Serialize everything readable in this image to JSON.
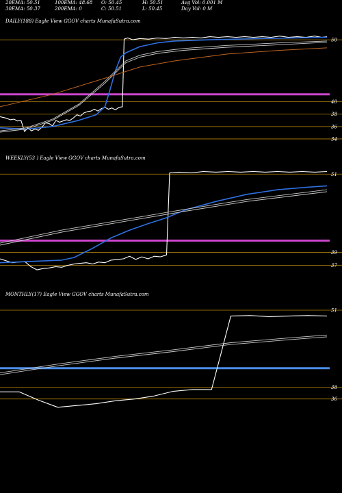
{
  "header": {
    "row1": [
      {
        "text": "20EMA: 50.51"
      },
      {
        "text": "100EMA: 48.68"
      },
      {
        "text": "O: 50.45"
      },
      {
        "text": "H: 50.51"
      },
      {
        "text": "Avg Vol: 0.001 M"
      }
    ],
    "row2": [
      {
        "text": "30EMA: 50.37"
      },
      {
        "text": "200EMA: 0"
      },
      {
        "text": "C: 50.51"
      },
      {
        "text": "L: 50.45"
      },
      {
        "text": "Day Vol: 0  M"
      }
    ]
  },
  "colors": {
    "background": "#000000",
    "price": "#ffffff",
    "ema_fast": "#2e6fe0",
    "ema_mid": "#c9c9c9",
    "ema_slow": "#c0651f",
    "level_line": "#b8860b",
    "support_daily": "#cc44cc",
    "support_weekly": "#cc44cc",
    "support_monthly": "#4a8ee8"
  },
  "chart_data": [
    {
      "type": "line",
      "label": "DAILY(188) Eagle  View  GGOV charts MunafaSutra.com",
      "ylim": [
        33,
        52
      ],
      "y_ticks": [
        50,
        40,
        38,
        36,
        34
      ],
      "support_level": 41.2,
      "series": [
        {
          "key": "price",
          "style": "price",
          "values": [
            [
              0,
              37.6
            ],
            [
              3,
              37.4
            ],
            [
              6,
              37.1
            ],
            [
              8,
              37.2
            ],
            [
              10,
              36.9
            ],
            [
              12,
              37.0
            ],
            [
              14,
              35.2
            ],
            [
              16,
              35.8
            ],
            [
              18,
              35.3
            ],
            [
              20,
              35.6
            ],
            [
              22,
              35.4
            ],
            [
              24,
              35.9
            ],
            [
              26,
              36.6
            ],
            [
              28,
              36.5
            ],
            [
              30,
              36.1
            ],
            [
              32,
              37.0
            ],
            [
              34,
              36.7
            ],
            [
              36,
              36.9
            ],
            [
              38,
              37.1
            ],
            [
              40,
              37.0
            ],
            [
              42,
              37.4
            ],
            [
              44,
              37.9
            ],
            [
              46,
              37.7
            ],
            [
              48,
              38.2
            ],
            [
              50,
              38.4
            ],
            [
              52,
              38.5
            ],
            [
              54,
              38.8
            ],
            [
              56,
              38.5
            ],
            [
              58,
              38.9
            ],
            [
              60,
              39.1
            ],
            [
              62,
              38.8
            ],
            [
              64,
              39.0
            ],
            [
              66,
              38.7
            ],
            [
              68,
              39.1
            ],
            [
              70,
              39.2
            ],
            [
              71,
              50.1
            ],
            [
              73,
              50.3
            ],
            [
              76,
              50.0
            ],
            [
              80,
              50.2
            ],
            [
              85,
              50.1
            ],
            [
              90,
              50.3
            ],
            [
              95,
              50.2
            ],
            [
              100,
              50.4
            ],
            [
              105,
              50.3
            ],
            [
              110,
              50.4
            ],
            [
              115,
              50.3
            ],
            [
              120,
              50.5
            ],
            [
              125,
              50.4
            ],
            [
              130,
              50.5
            ],
            [
              135,
              50.4
            ],
            [
              140,
              50.5
            ],
            [
              145,
              50.4
            ],
            [
              150,
              50.5
            ],
            [
              155,
              50.4
            ],
            [
              160,
              50.6
            ],
            [
              165,
              50.4
            ],
            [
              170,
              50.5
            ],
            [
              175,
              50.4
            ],
            [
              180,
              50.6
            ],
            [
              184,
              50.4
            ],
            [
              187,
              50.5
            ]
          ]
        },
        {
          "key": "ema_fast",
          "style": "fast",
          "values": [
            [
              0,
              35.8
            ],
            [
              15,
              35.6
            ],
            [
              30,
              36.0
            ],
            [
              45,
              37.0
            ],
            [
              55,
              37.9
            ],
            [
              60,
              39.2
            ],
            [
              63,
              42.0
            ],
            [
              66,
              45.0
            ],
            [
              69,
              47.2
            ],
            [
              72,
              47.9
            ],
            [
              80,
              48.9
            ],
            [
              90,
              49.5
            ],
            [
              100,
              49.8
            ],
            [
              120,
              50.0
            ],
            [
              150,
              50.2
            ],
            [
              187,
              50.4
            ]
          ]
        },
        {
          "key": "ema_mid_1",
          "style": "mid",
          "values": [
            [
              0,
              35.3
            ],
            [
              15,
              35.8
            ],
            [
              30,
              37.2
            ],
            [
              45,
              39.6
            ],
            [
              60,
              43.3
            ],
            [
              72,
              46.6
            ],
            [
              80,
              47.5
            ],
            [
              90,
              48.1
            ],
            [
              105,
              48.6
            ],
            [
              130,
              49.1
            ],
            [
              160,
              49.5
            ],
            [
              187,
              49.8
            ]
          ]
        },
        {
          "key": "ema_mid_2",
          "style": "mid",
          "values": [
            [
              0,
              35.1
            ],
            [
              15,
              35.6
            ],
            [
              30,
              37.0
            ],
            [
              45,
              39.4
            ],
            [
              60,
              43.0
            ],
            [
              72,
              46.3
            ],
            [
              80,
              47.2
            ],
            [
              90,
              47.8
            ],
            [
              105,
              48.3
            ],
            [
              130,
              48.8
            ],
            [
              160,
              49.2
            ],
            [
              187,
              49.6
            ]
          ]
        },
        {
          "key": "ema_slow",
          "style": "slow",
          "values": [
            [
              0,
              39.2
            ],
            [
              30,
              41.2
            ],
            [
              60,
              43.8
            ],
            [
              80,
              45.6
            ],
            [
              100,
              46.6
            ],
            [
              130,
              47.7
            ],
            [
              160,
              48.3
            ],
            [
              187,
              48.7
            ]
          ]
        }
      ]
    },
    {
      "type": "line",
      "label": "WEEKLY(53                    ) Eagle  View  GGOV charts MunafaSutra.com",
      "ylim": [
        36,
        52.5
      ],
      "y_ticks": [
        51,
        39,
        37
      ],
      "support_level": 40.8,
      "series": [
        {
          "key": "price",
          "style": "price",
          "values": [
            [
              0,
              38.0
            ],
            [
              2,
              37.4
            ],
            [
              4,
              37.6
            ],
            [
              5,
              36.8
            ],
            [
              6,
              36.3
            ],
            [
              7,
              36.5
            ],
            [
              8,
              36.6
            ],
            [
              9,
              36.8
            ],
            [
              10,
              36.7
            ],
            [
              11,
              37.0
            ],
            [
              12,
              37.2
            ],
            [
              13,
              37.3
            ],
            [
              14,
              37.4
            ],
            [
              15,
              37.2
            ],
            [
              16,
              37.5
            ],
            [
              17,
              37.4
            ],
            [
              18,
              37.8
            ],
            [
              19,
              37.9
            ],
            [
              20,
              38.0
            ],
            [
              21,
              38.4
            ],
            [
              22,
              37.9
            ],
            [
              23,
              38.3
            ],
            [
              24,
              38.0
            ],
            [
              25,
              38.4
            ],
            [
              26,
              38.3
            ],
            [
              27,
              38.6
            ],
            [
              27.5,
              51.2
            ],
            [
              29,
              51.3
            ],
            [
              31,
              51.2
            ],
            [
              33,
              51.4
            ],
            [
              35,
              51.3
            ],
            [
              37,
              51.4
            ],
            [
              39,
              51.3
            ],
            [
              41,
              51.4
            ],
            [
              43,
              51.3
            ],
            [
              45,
              51.4
            ],
            [
              47,
              51.3
            ],
            [
              49,
              51.4
            ],
            [
              51,
              51.3
            ],
            [
              53,
              51.4
            ]
          ]
        },
        {
          "key": "ema_fast",
          "style": "fast",
          "values": [
            [
              0,
              37.4
            ],
            [
              5,
              37.6
            ],
            [
              10,
              37.8
            ],
            [
              12,
              38.2
            ],
            [
              15,
              39.6
            ],
            [
              18,
              41.2
            ],
            [
              21,
              42.4
            ],
            [
              24,
              43.4
            ],
            [
              27,
              44.3
            ],
            [
              30,
              45.5
            ],
            [
              35,
              46.8
            ],
            [
              40,
              47.9
            ],
            [
              45,
              48.6
            ],
            [
              50,
              49.0
            ],
            [
              53,
              49.2
            ]
          ]
        },
        {
          "key": "ema_mid_1",
          "style": "mid",
          "values": [
            [
              0,
              40.4
            ],
            [
              10,
              42.4
            ],
            [
              20,
              44.0
            ],
            [
              30,
              45.6
            ],
            [
              40,
              47.1
            ],
            [
              53,
              48.6
            ]
          ]
        },
        {
          "key": "ema_mid_2",
          "style": "mid",
          "values": [
            [
              0,
              40.1
            ],
            [
              10,
              42.1
            ],
            [
              20,
              43.7
            ],
            [
              30,
              45.3
            ],
            [
              40,
              46.8
            ],
            [
              53,
              48.3
            ]
          ]
        }
      ]
    },
    {
      "type": "line",
      "label": "MONTHLY(17) Eagle  View  GGOV charts MunafaSutra.com",
      "ylim": [
        34,
        52.5
      ],
      "y_ticks": [
        51,
        38,
        36
      ],
      "support_level": 41.2,
      "series": [
        {
          "key": "price",
          "style": "price",
          "values": [
            [
              0,
              37.2
            ],
            [
              1,
              37.2
            ],
            [
              2,
              35.8
            ],
            [
              3,
              34.6
            ],
            [
              4,
              34.9
            ],
            [
              5,
              35.2
            ],
            [
              6,
              35.7
            ],
            [
              7,
              36.0
            ],
            [
              8,
              36.5
            ],
            [
              9,
              37.3
            ],
            [
              10,
              37.6
            ],
            [
              11,
              37.6
            ],
            [
              12,
              50.0
            ],
            [
              13,
              50.1
            ],
            [
              14,
              49.9
            ],
            [
              15,
              50.0
            ],
            [
              16,
              50.1
            ],
            [
              17,
              50.0
            ]
          ]
        },
        {
          "key": "ema_mid_1",
          "style": "mid",
          "values": [
            [
              0,
              40.4
            ],
            [
              3,
              41.9
            ],
            [
              6,
              43.2
            ],
            [
              9,
              44.3
            ],
            [
              12,
              45.5
            ],
            [
              15,
              46.3
            ],
            [
              17,
              46.8
            ]
          ]
        },
        {
          "key": "ema_mid_2",
          "style": "mid",
          "values": [
            [
              0,
              40.1
            ],
            [
              3,
              41.6
            ],
            [
              6,
              42.9
            ],
            [
              9,
              44.0
            ],
            [
              12,
              45.2
            ],
            [
              15,
              46.0
            ],
            [
              17,
              46.5
            ]
          ]
        }
      ]
    }
  ]
}
